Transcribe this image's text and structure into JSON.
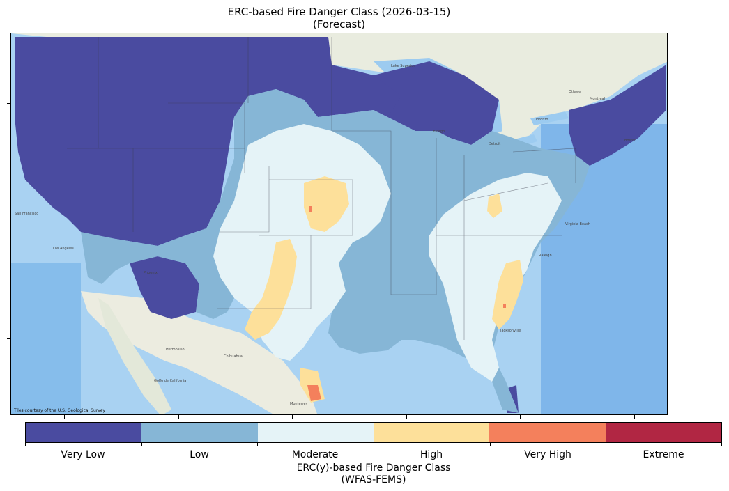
{
  "title": {
    "line1": "ERC-based Fire Danger Class (2026-03-15)",
    "line2": "(Forecast)"
  },
  "map": {
    "attribution": "Tiles courtesy of the U.S. Geological Survey",
    "place_labels": [
      "Lake Superior",
      "Toronto",
      "Chicago",
      "Detroit",
      "San Francisco",
      "Los Angeles",
      "Phoenix",
      "Hermosillo",
      "Chihuahua",
      "Monterrey",
      "Jacksonville",
      "Raleigh",
      "Virginia Beach",
      "Boston",
      "Montreal",
      "Ottawa",
      "Golfo de California"
    ],
    "colors": {
      "ocean": "#a9d2f2",
      "land_canada_mexico": "#e9ecdf",
      "lakes": "#9ccbf0",
      "very_low": "#4a4ba0",
      "low": "#86b6d6",
      "moderate": "#e5f3f7",
      "high": "#fde09a",
      "very_high": "#f4805c",
      "extreme": "#b12643"
    }
  },
  "colorbar": {
    "classes": [
      {
        "label": "Very Low",
        "color": "#4a4ba0"
      },
      {
        "label": "Low",
        "color": "#86b6d6"
      },
      {
        "label": "Moderate",
        "color": "#e5f3f7"
      },
      {
        "label": "High",
        "color": "#fde09a"
      },
      {
        "label": "Very High",
        "color": "#f4805c"
      },
      {
        "label": "Extreme",
        "color": "#b12643"
      }
    ],
    "label_line1": "ERC(y)-based Fire Danger Class",
    "label_line2": "(WFAS-FEMS)"
  }
}
